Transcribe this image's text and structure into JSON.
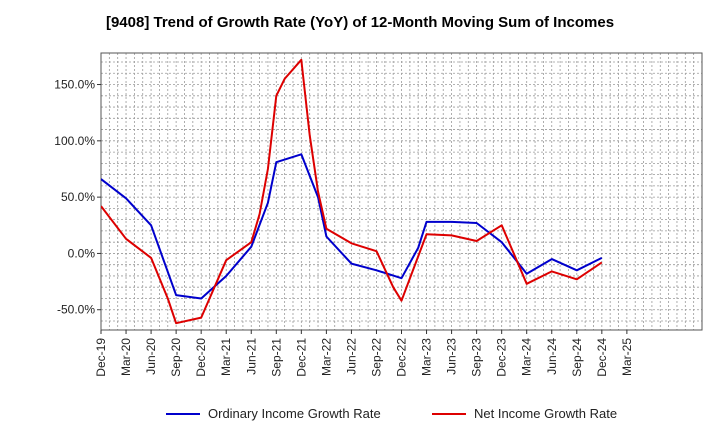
{
  "chart_data": {
    "type": "line",
    "title": "[9408]  Trend of Growth Rate (YoY) of 12-Month Moving Sum of Incomes",
    "xlabel": "",
    "ylabel": "",
    "x_tick_labels": [
      "Dec-19",
      "Mar-20",
      "Jun-20",
      "Sep-20",
      "Dec-20",
      "Mar-21",
      "Jun-21",
      "Sep-21",
      "Dec-21",
      "Mar-22",
      "Jun-22",
      "Sep-22",
      "Dec-22",
      "Mar-23",
      "Jun-23",
      "Sep-23",
      "Dec-23",
      "Mar-24",
      "Jun-24",
      "Sep-24",
      "Dec-24",
      "Mar-25"
    ],
    "y_ticks": [
      150,
      100,
      50,
      0,
      -50
    ],
    "y_tick_labels": [
      "150.0%",
      "100.0%",
      "50.0%",
      "0.0%",
      "-50.0%"
    ],
    "ylim": [
      -68,
      178
    ],
    "xlim": [
      0,
      72
    ],
    "grid": true,
    "legend_position": "bottom",
    "series": [
      {
        "name": "Ordinary Income Growth Rate",
        "color": "#0000cc",
        "points": [
          [
            0,
            66
          ],
          [
            3,
            49
          ],
          [
            6,
            25
          ],
          [
            9,
            -37
          ],
          [
            12,
            -40
          ],
          [
            15,
            -20
          ],
          [
            18,
            6
          ],
          [
            20,
            45
          ],
          [
            21,
            81
          ],
          [
            24,
            88
          ],
          [
            26,
            50
          ],
          [
            27,
            15
          ],
          [
            30,
            -9
          ],
          [
            33,
            -15
          ],
          [
            36,
            -22
          ],
          [
            38,
            5
          ],
          [
            39,
            28
          ],
          [
            42,
            28
          ],
          [
            45,
            27
          ],
          [
            48,
            10
          ],
          [
            51,
            -18
          ],
          [
            54,
            -5
          ],
          [
            57,
            -15
          ],
          [
            60,
            -4
          ]
        ]
      },
      {
        "name": "Net Income Growth Rate",
        "color": "#dd0000",
        "points": [
          [
            0,
            42
          ],
          [
            3,
            13
          ],
          [
            6,
            -4
          ],
          [
            8,
            -40
          ],
          [
            9,
            -62
          ],
          [
            12,
            -57
          ],
          [
            15,
            -6
          ],
          [
            18,
            10
          ],
          [
            19,
            35
          ],
          [
            20,
            75
          ],
          [
            21,
            140
          ],
          [
            22,
            155
          ],
          [
            24,
            172
          ],
          [
            25,
            105
          ],
          [
            26,
            55
          ],
          [
            27,
            22
          ],
          [
            30,
            9
          ],
          [
            33,
            2
          ],
          [
            35,
            -30
          ],
          [
            36,
            -42
          ],
          [
            39,
            17
          ],
          [
            42,
            16
          ],
          [
            45,
            11
          ],
          [
            48,
            25
          ],
          [
            51,
            -27
          ],
          [
            54,
            -16
          ],
          [
            57,
            -23
          ],
          [
            60,
            -8
          ]
        ]
      }
    ]
  }
}
